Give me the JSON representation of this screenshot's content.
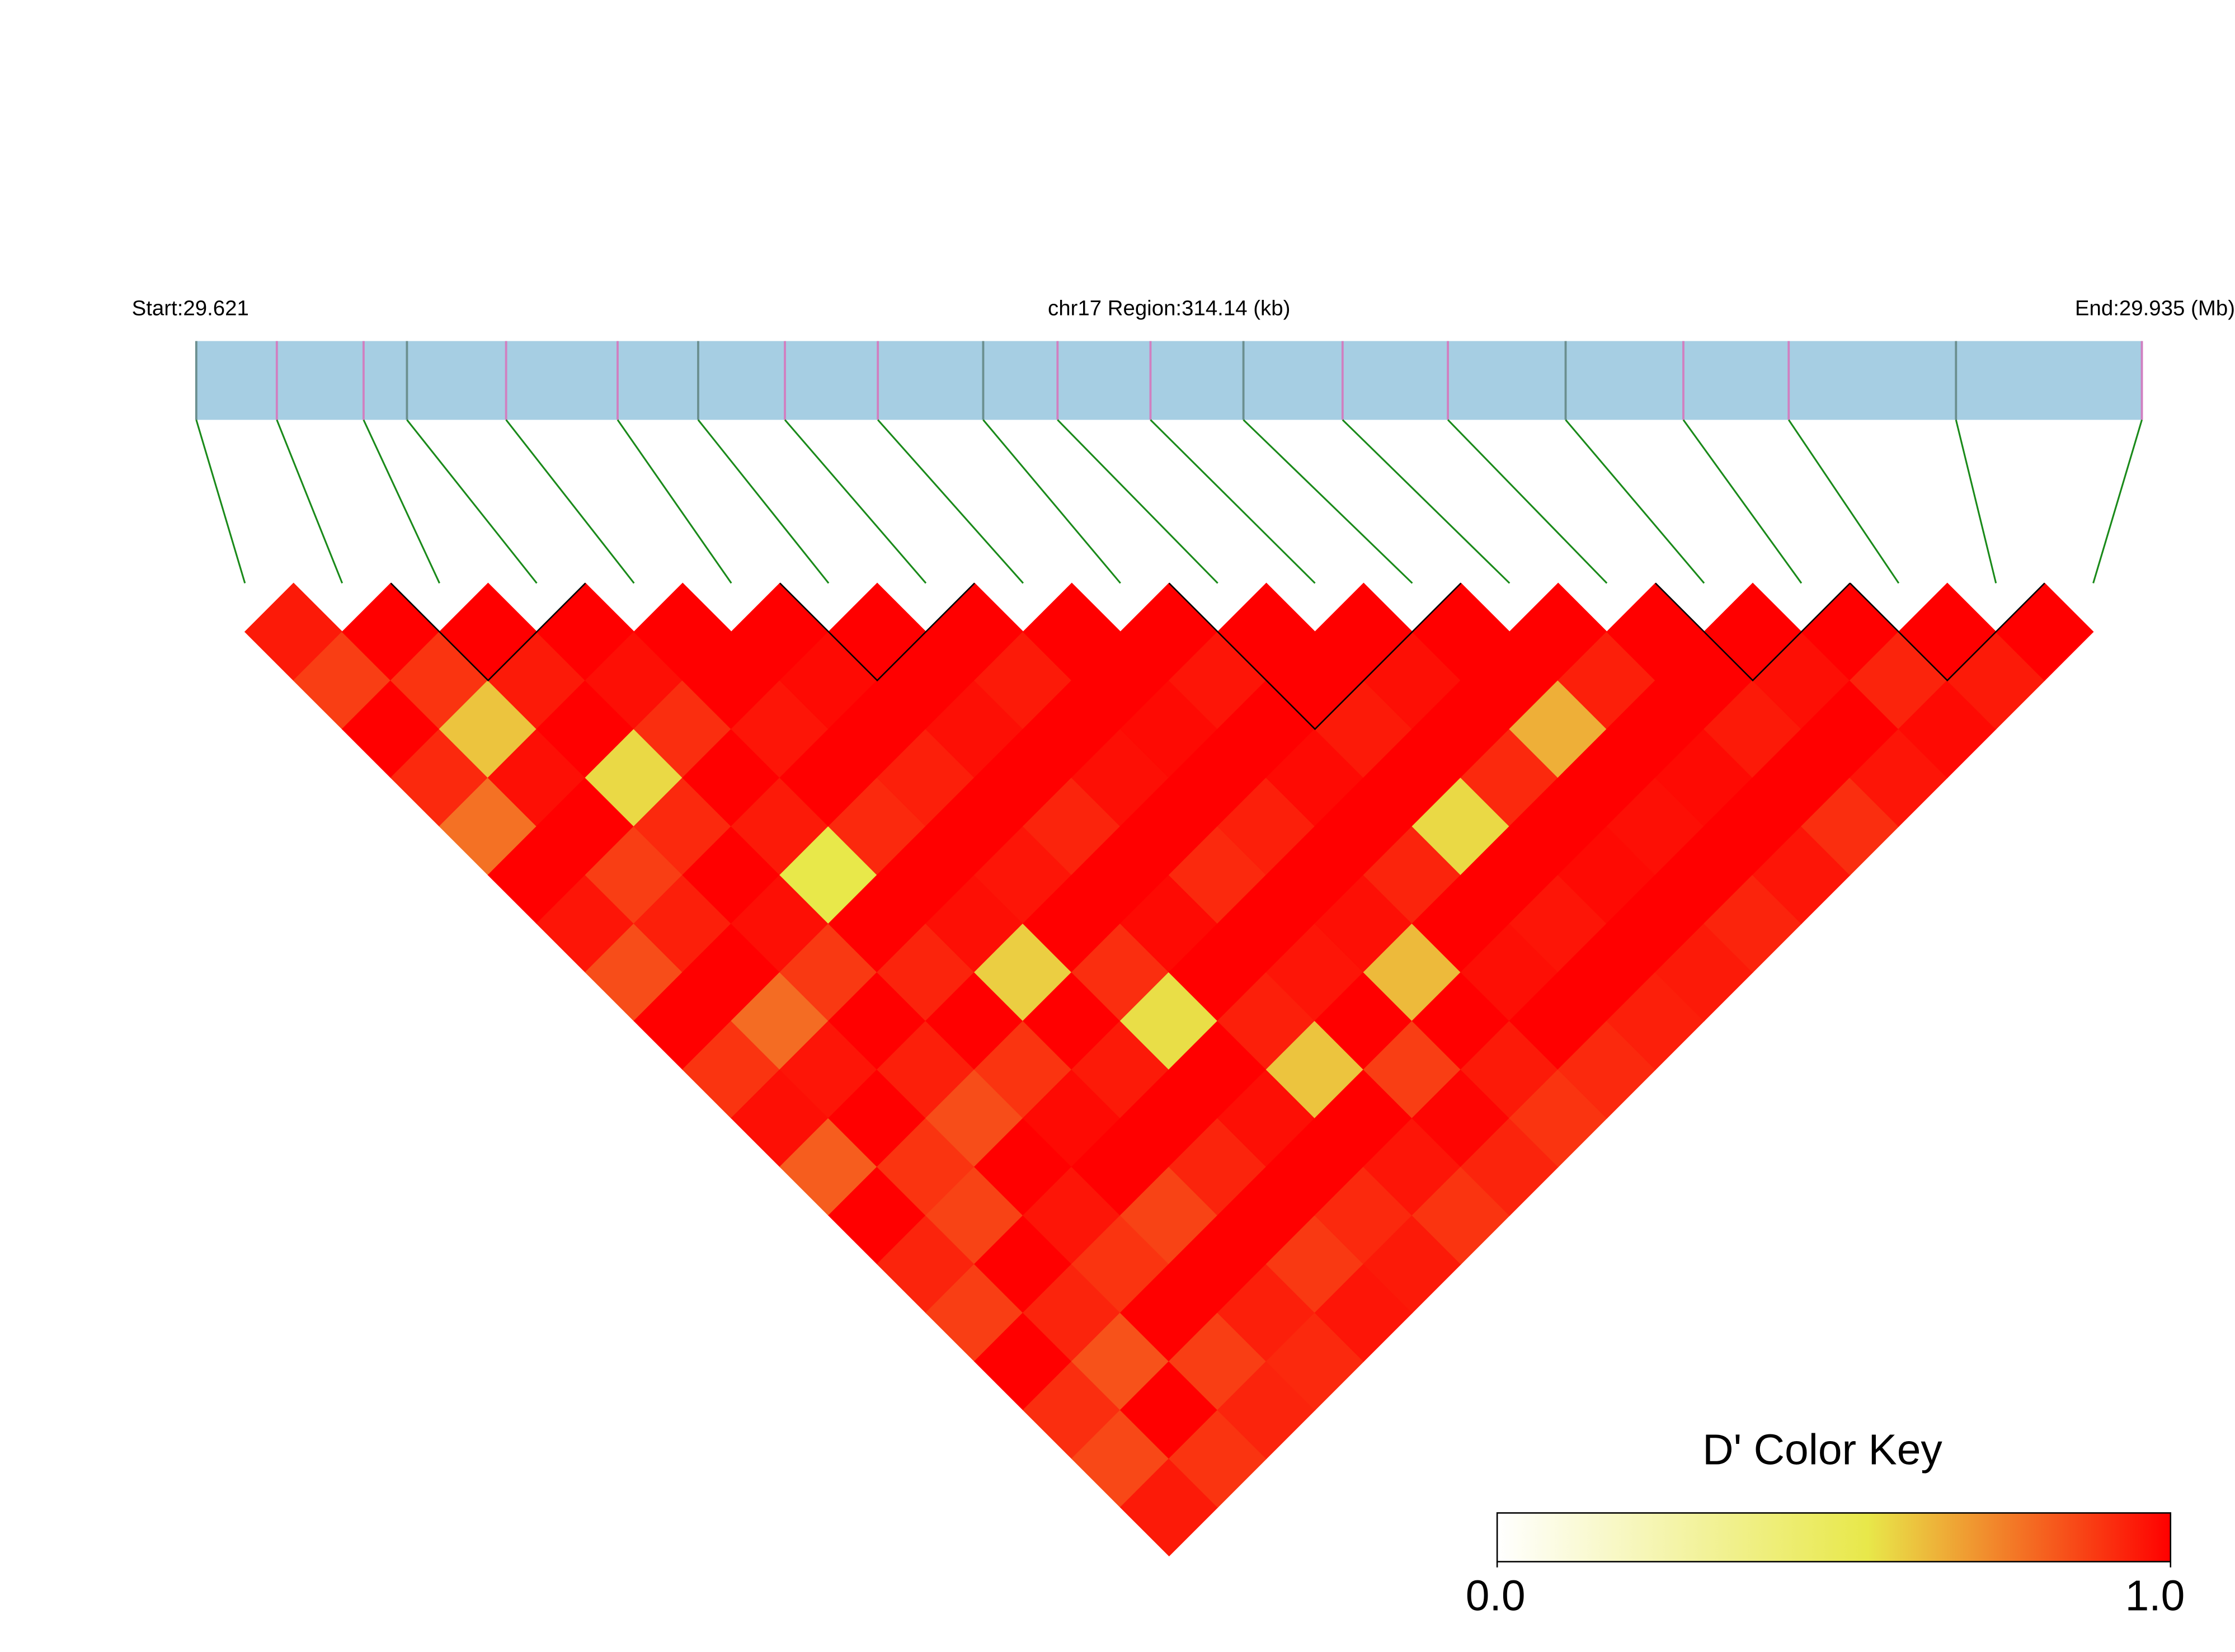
{
  "chart_data": {
    "type": "ld_heatmap",
    "start_label": "Start:29.621",
    "region_label": "chr17 Region:314.14 (kb)",
    "end_label": "End:29.935 (Mb)",
    "xlim": [
      29.621,
      29.935
    ],
    "positions": [
      29.621,
      29.634,
      29.648,
      29.655,
      29.671,
      29.689,
      29.702,
      29.716,
      29.731,
      29.748,
      29.76,
      29.775,
      29.79,
      29.806,
      29.823,
      29.842,
      29.861,
      29.878,
      29.905,
      29.935
    ],
    "matrix": [
      [
        0.95,
        0.88,
        1,
        0.92,
        0.78,
        1,
        0.96,
        0.85,
        1,
        0.9,
        0.97,
        0.82,
        1,
        0.93,
        0.88,
        1,
        0.91,
        0.86,
        0.95
      ],
      [
        1,
        0.9,
        0.62,
        0.97,
        1,
        0.88,
        0.94,
        1,
        0.79,
        0.96,
        1,
        0.9,
        0.87,
        1,
        0.93,
        0.84,
        1,
        0.9
      ],
      [
        1,
        0.95,
        1,
        0.58,
        0.92,
        1,
        0.97,
        0.89,
        1,
        0.94,
        0.85,
        1,
        0.96,
        0.9,
        1,
        0.88,
        0.93
      ],
      [
        1,
        0.97,
        0.91,
        1,
        0.95,
        0.55,
        1,
        0.93,
        1,
        0.9,
        0.98,
        1,
        0.87,
        1,
        0.94,
        0.92
      ],
      [
        1,
        1,
        0.96,
        1,
        0.92,
        1,
        0.97,
        0.6,
        1,
        0.95,
        1,
        0.93,
        1,
        0.89,
        0.96
      ],
      [
        1,
        0.98,
        1,
        0.94,
        1,
        0.96,
        1,
        0.91,
        0.57,
        1,
        0.97,
        1,
        0.92,
        0.95
      ],
      [
        1,
        1,
        0.97,
        1,
        0.93,
        1,
        0.98,
        1,
        0.94,
        0.62,
        1,
        0.96,
        0.9
      ],
      [
        1,
        0.95,
        1,
        0.97,
        1,
        0.92,
        1,
        0.96,
        1,
        0.88,
        0.99,
        0.93
      ],
      [
        1,
        1,
        0.98,
        1,
        0.94,
        1,
        0.97,
        0.64,
        1,
        0.95,
        0.9
      ],
      [
        1,
        0.96,
        1,
        0.98,
        1,
        0.93,
        1,
        0.97,
        1,
        0.92
      ],
      [
        1,
        1,
        0.95,
        1,
        0.58,
        1,
        0.96,
        1,
        0.94
      ],
      [
        1,
        0.97,
        1,
        0.92,
        1,
        0.98,
        1,
        0.95
      ],
      [
        1,
        1,
        0.66,
        1,
        0.97,
        1,
        0.93
      ],
      [
        1,
        0.94,
        1,
        0.98,
        1,
        0.96
      ],
      [
        1,
        1,
        0.95,
        1,
        0.91
      ],
      [
        1,
        0.97,
        1,
        0.96
      ],
      [
        1,
        0.93,
        0.98
      ],
      [
        1,
        0.95
      ],
      [
        1
      ]
    ],
    "blocks": [
      [
        2,
        3
      ],
      [
        6,
        7
      ],
      [
        10,
        12
      ],
      [
        15,
        16
      ],
      [
        17,
        18
      ]
    ],
    "legend_title": "D' Color Key",
    "legend_ticks": [
      {
        "value": 0,
        "label": "0.0"
      },
      {
        "value": 1,
        "label": "1.0"
      }
    ],
    "color_stops": [
      0,
      0.55,
      1
    ],
    "colors": [
      "#ffffff",
      "#e8e84a",
      "#ff0000"
    ]
  }
}
